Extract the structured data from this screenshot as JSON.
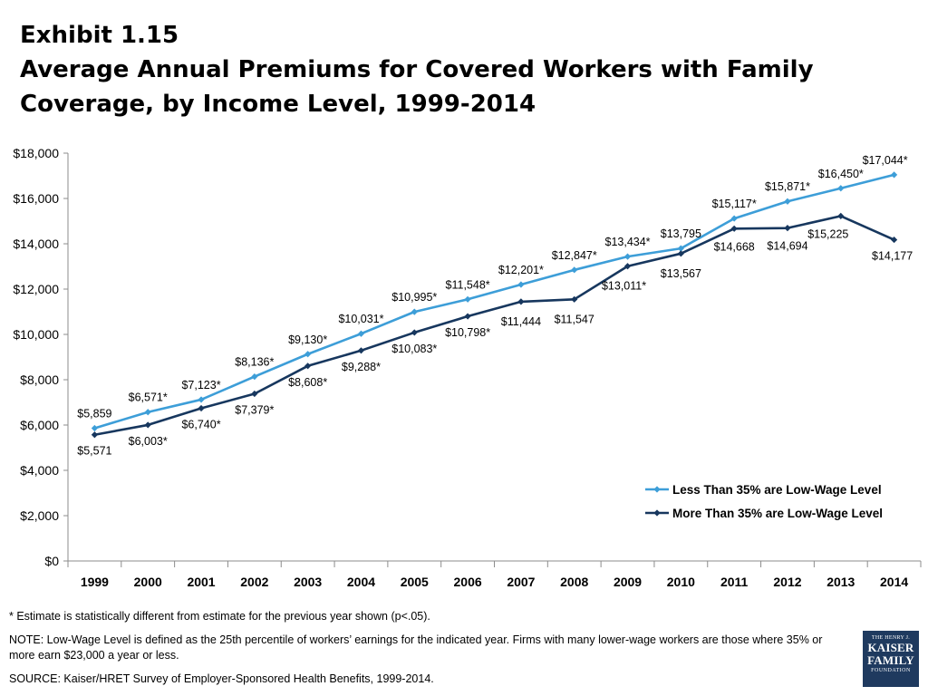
{
  "title": {
    "line1": "Exhibit 1.15",
    "line2": "Average Annual Premiums for Covered Workers with Family",
    "line3": "Coverage, by Income Level, 1999-2014"
  },
  "chart_data": {
    "type": "line",
    "x": [
      "1999",
      "2000",
      "2001",
      "2002",
      "2003",
      "2004",
      "2005",
      "2006",
      "2007",
      "2008",
      "2009",
      "2010",
      "2011",
      "2012",
      "2013",
      "2014"
    ],
    "ylim": [
      0,
      18000
    ],
    "yticks": [
      0,
      2000,
      4000,
      6000,
      8000,
      10000,
      12000,
      14000,
      16000,
      18000
    ],
    "ytick_labels": [
      "$0",
      "$2,000",
      "$4,000",
      "$6,000",
      "$8,000",
      "$10,000",
      "$12,000",
      "$14,000",
      "$16,000",
      "$18,000"
    ],
    "grid": false,
    "legend_position": "bottom-right",
    "series": [
      {
        "name": "Less Than 35% are Low-Wage Level",
        "color": "#3d9ed8",
        "values": [
          5859,
          6571,
          7123,
          8136,
          9130,
          10031,
          10995,
          11548,
          12201,
          12847,
          13434,
          13795,
          15117,
          15871,
          16450,
          17044
        ],
        "labels": [
          "$5,859",
          "$6,571*",
          "$7,123*",
          "$8,136*",
          "$9,130*",
          "$10,031*",
          "$10,995*",
          "$11,548*",
          "$12,201*",
          "$12,847*",
          "$13,434*",
          "$13,795",
          "$15,117*",
          "$15,871*",
          "$16,450*",
          "$17,044*"
        ]
      },
      {
        "name": "More Than 35% are Low-Wage Level",
        "color": "#17375e",
        "values": [
          5571,
          6003,
          6740,
          7379,
          8608,
          9288,
          10083,
          10798,
          11444,
          11547,
          13011,
          13567,
          14668,
          14694,
          15225,
          14177
        ],
        "labels": [
          "$5,571",
          "$6,003*",
          "$6,740*",
          "$7,379*",
          "$8,608*",
          "$9,288*",
          "$10,083*",
          "$10,798*",
          "$11,444",
          "$11,547",
          "$13,011*",
          "$13,567",
          "$14,668",
          "$14,694",
          "$15,225",
          "$14,177"
        ]
      }
    ]
  },
  "footnotes": {
    "asterisk": "* Estimate is statistically different from estimate for the previous year shown (p<.05).",
    "note": "NOTE: Low-Wage Level is defined as the 25th percentile of workers’ earnings for the indicated year. Firms with many lower-wage workers are those where 35% or more earn $23,000 a year or less.",
    "source": "SOURCE:  Kaiser/HRET Survey of Employer-Sponsored Health Benefits, 1999-2014."
  },
  "logo": {
    "line1": "THE HENRY J.",
    "line2": "KAISER",
    "line3": "FAMILY",
    "line4": "FOUNDATION"
  }
}
